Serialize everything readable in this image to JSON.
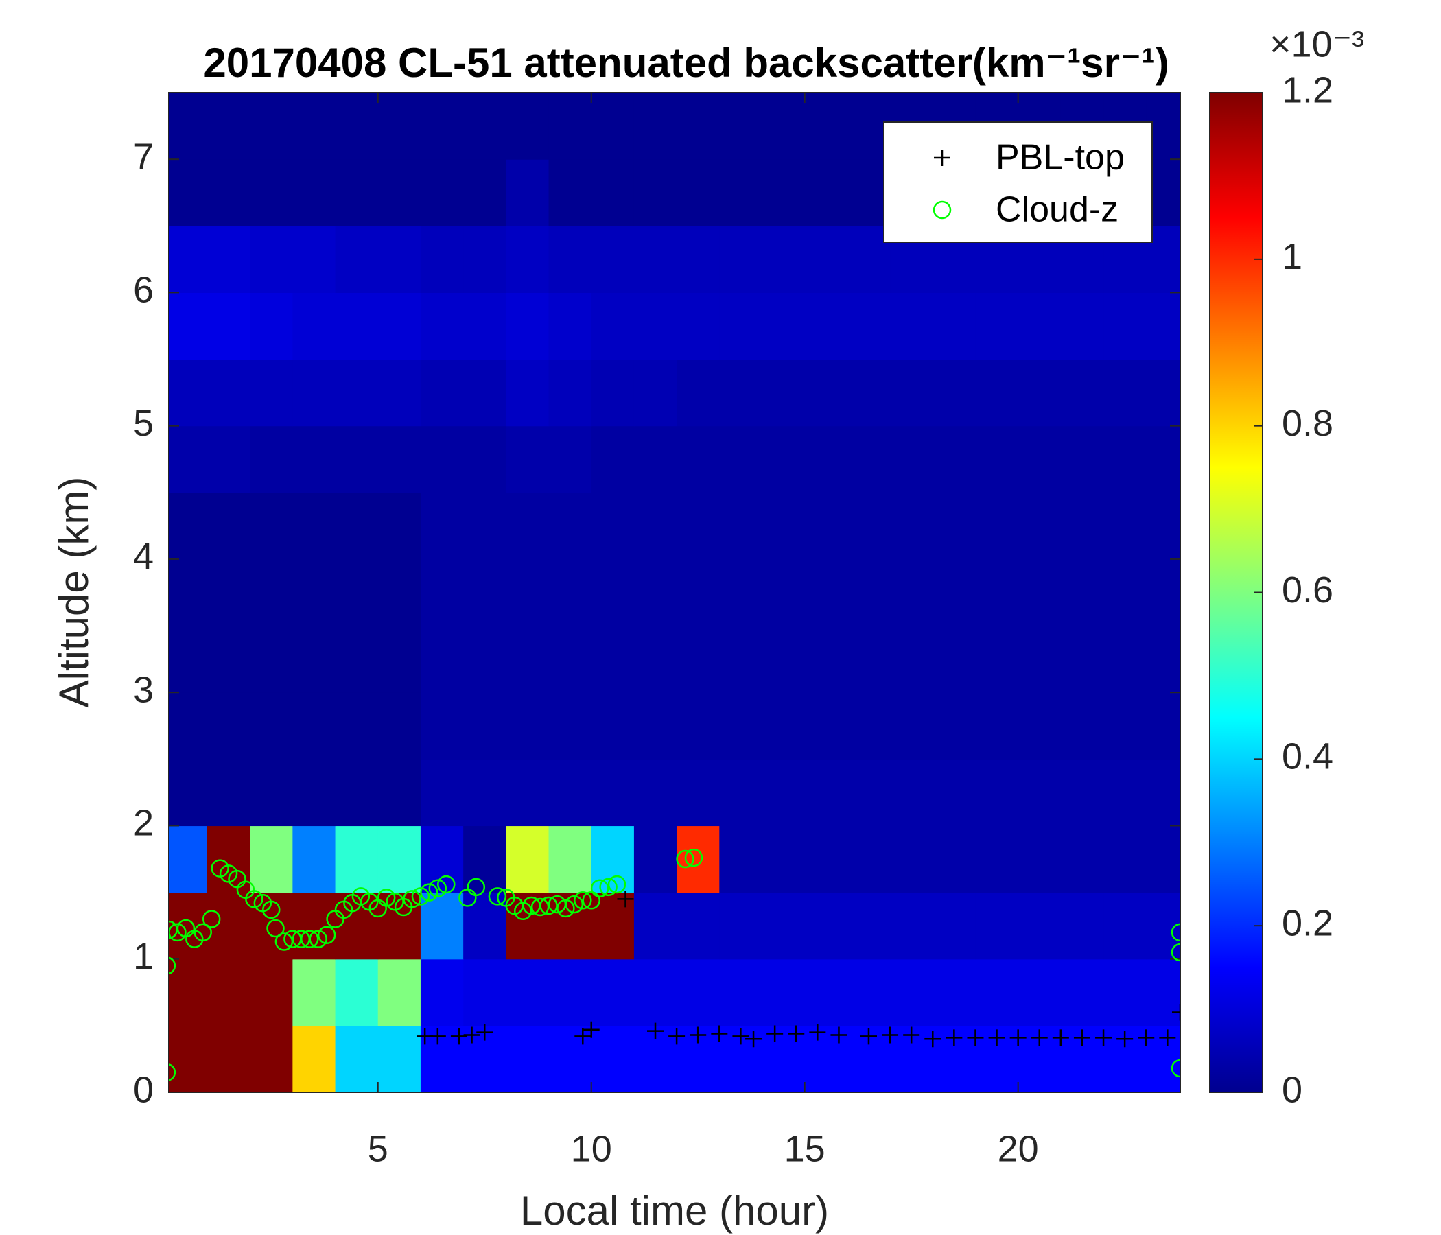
{
  "chart_data": {
    "type": "heatmap",
    "title": "20170408  CL-51 attenuated backscatter(km⁻¹sr⁻¹)",
    "x_label": "Local time (hour)",
    "y_label": "Altitude (km)",
    "colorbar_exponent": "×10⁻³",
    "colormap": "jet",
    "xlim": [
      0.1,
      23.8
    ],
    "ylim": [
      0,
      7.5
    ],
    "clim": [
      0,
      1.2
    ],
    "xticks": [
      5,
      10,
      15,
      20
    ],
    "yticks": [
      0,
      1,
      2,
      3,
      4,
      5,
      6,
      7
    ],
    "cticks": [
      0,
      0.2,
      0.4,
      0.6,
      0.8,
      1,
      1.2
    ],
    "x": [
      0.5,
      1.5,
      2.5,
      3.5,
      4.5,
      5.5,
      6.5,
      7.5,
      8.5,
      9.5,
      10.5,
      11.5,
      12.5,
      13.5,
      14.5,
      15.5,
      16.5,
      17.5,
      18.5,
      19.5,
      20.5,
      21.5,
      22.5,
      23.5
    ],
    "y": [
      0.25,
      0.75,
      1.25,
      1.75,
      2.25,
      2.75,
      3.25,
      3.75,
      4.25,
      4.75,
      5.25,
      5.75,
      6.25,
      6.75,
      7.25
    ],
    "z": [
      [
        1.2,
        1.2,
        1.2,
        0.8,
        0.4,
        0.4,
        0.15,
        0.15,
        0.15,
        0.15,
        0.15,
        0.15,
        0.15,
        0.15,
        0.15,
        0.15,
        0.15,
        0.15,
        0.15,
        0.15,
        0.15,
        0.15,
        0.15,
        0.15
      ],
      [
        1.2,
        1.2,
        1.2,
        0.6,
        0.5,
        0.6,
        0.13,
        0.12,
        0.12,
        0.12,
        0.12,
        0.12,
        0.12,
        0.12,
        0.12,
        0.12,
        0.12,
        0.12,
        0.12,
        0.12,
        0.12,
        0.12,
        0.12,
        0.12
      ],
      [
        1.2,
        1.2,
        1.2,
        1.2,
        1.2,
        1.2,
        0.3,
        0.08,
        1.2,
        1.2,
        1.2,
        0.08,
        0.08,
        0.08,
        0.08,
        0.08,
        0.08,
        0.08,
        0.08,
        0.08,
        0.08,
        0.08,
        0.08,
        0.08
      ],
      [
        0.25,
        1.2,
        0.6,
        0.3,
        0.5,
        0.5,
        0.1,
        0.03,
        0.7,
        0.6,
        0.4,
        0.05,
        1.0,
        0.05,
        0.05,
        0.05,
        0.05,
        0.05,
        0.05,
        0.05,
        0.05,
        0.05,
        0.05,
        0.05
      ],
      [
        0.02,
        0.02,
        0.02,
        0.02,
        0.02,
        0.02,
        0.05,
        0.05,
        0.05,
        0.05,
        0.05,
        0.05,
        0.05,
        0.05,
        0.05,
        0.05,
        0.05,
        0.05,
        0.05,
        0.05,
        0.05,
        0.05,
        0.05,
        0.05
      ],
      [
        0.02,
        0.02,
        0.02,
        0.02,
        0.02,
        0.02,
        0.04,
        0.04,
        0.04,
        0.04,
        0.04,
        0.04,
        0.04,
        0.04,
        0.04,
        0.04,
        0.04,
        0.04,
        0.04,
        0.04,
        0.04,
        0.04,
        0.04,
        0.04
      ],
      [
        0.02,
        0.02,
        0.02,
        0.02,
        0.02,
        0.02,
        0.04,
        0.04,
        0.04,
        0.04,
        0.04,
        0.04,
        0.04,
        0.04,
        0.04,
        0.04,
        0.04,
        0.04,
        0.04,
        0.04,
        0.04,
        0.04,
        0.04,
        0.04
      ],
      [
        0.02,
        0.02,
        0.02,
        0.02,
        0.02,
        0.02,
        0.04,
        0.04,
        0.04,
        0.04,
        0.04,
        0.04,
        0.04,
        0.04,
        0.04,
        0.04,
        0.04,
        0.04,
        0.04,
        0.04,
        0.04,
        0.04,
        0.04,
        0.04
      ],
      [
        0.02,
        0.02,
        0.02,
        0.02,
        0.02,
        0.02,
        0.04,
        0.04,
        0.04,
        0.04,
        0.04,
        0.04,
        0.04,
        0.04,
        0.04,
        0.04,
        0.04,
        0.04,
        0.04,
        0.04,
        0.04,
        0.04,
        0.04,
        0.04
      ],
      [
        0.05,
        0.05,
        0.04,
        0.04,
        0.04,
        0.04,
        0.04,
        0.04,
        0.05,
        0.05,
        0.04,
        0.04,
        0.04,
        0.04,
        0.04,
        0.04,
        0.04,
        0.04,
        0.04,
        0.04,
        0.04,
        0.04,
        0.04,
        0.04
      ],
      [
        0.07,
        0.07,
        0.07,
        0.07,
        0.07,
        0.07,
        0.06,
        0.06,
        0.08,
        0.07,
        0.06,
        0.06,
        0.05,
        0.05,
        0.05,
        0.05,
        0.05,
        0.05,
        0.05,
        0.05,
        0.05,
        0.05,
        0.05,
        0.05
      ],
      [
        0.12,
        0.12,
        0.11,
        0.1,
        0.1,
        0.1,
        0.09,
        0.09,
        0.1,
        0.09,
        0.08,
        0.08,
        0.08,
        0.08,
        0.08,
        0.08,
        0.08,
        0.08,
        0.08,
        0.08,
        0.08,
        0.08,
        0.08,
        0.08
      ],
      [
        0.1,
        0.1,
        0.09,
        0.09,
        0.08,
        0.08,
        0.07,
        0.07,
        0.08,
        0.07,
        0.07,
        0.07,
        0.07,
        0.07,
        0.07,
        0.07,
        0.07,
        0.07,
        0.07,
        0.07,
        0.07,
        0.07,
        0.07,
        0.07
      ],
      [
        0.02,
        0.02,
        0.02,
        0.02,
        0.02,
        0.02,
        0.02,
        0.02,
        0.05,
        0.02,
        0.02,
        0.02,
        0.02,
        0.02,
        0.02,
        0.02,
        0.02,
        0.02,
        0.02,
        0.02,
        0.02,
        0.02,
        0.02,
        0.02
      ],
      [
        0.02,
        0.02,
        0.02,
        0.02,
        0.02,
        0.02,
        0.02,
        0.02,
        0.02,
        0.02,
        0.02,
        0.02,
        0.02,
        0.02,
        0.02,
        0.02,
        0.02,
        0.02,
        0.02,
        0.02,
        0.02,
        0.02,
        0.02,
        0.02
      ]
    ],
    "series": [
      {
        "name": "PBL-top",
        "marker": "plus",
        "color": "#000000",
        "x": [
          6.1,
          6.4,
          6.9,
          7.2,
          7.5,
          9.8,
          10.0,
          10.8,
          11.5,
          12.0,
          12.5,
          13.0,
          13.5,
          13.8,
          14.3,
          14.8,
          15.3,
          15.8,
          16.5,
          17.0,
          17.5,
          18.0,
          18.5,
          19.0,
          19.5,
          20.0,
          20.5,
          21.0,
          21.5,
          22.0,
          22.5,
          23.0,
          23.5,
          23.8
        ],
        "y": [
          0.42,
          0.42,
          0.42,
          0.43,
          0.45,
          0.42,
          0.47,
          1.45,
          0.46,
          0.42,
          0.43,
          0.44,
          0.42,
          0.4,
          0.44,
          0.44,
          0.45,
          0.43,
          0.42,
          0.43,
          0.43,
          0.4,
          0.41,
          0.41,
          0.41,
          0.41,
          0.41,
          0.41,
          0.41,
          0.41,
          0.4,
          0.41,
          0.41,
          0.6
        ]
      },
      {
        "name": "Cloud-z",
        "marker": "circle",
        "color": "#00ff00",
        "x": [
          0.1,
          0.3,
          0.5,
          0.7,
          0.9,
          1.1,
          1.3,
          1.5,
          1.7,
          1.9,
          2.1,
          2.3,
          2.5,
          2.6,
          2.8,
          3.0,
          3.2,
          3.4,
          3.6,
          3.8,
          4.0,
          4.2,
          4.4,
          4.6,
          4.8,
          5.0,
          5.2,
          5.4,
          5.6,
          5.8,
          6.0,
          6.2,
          6.4,
          6.6,
          7.1,
          7.3,
          7.8,
          8.0,
          8.2,
          8.4,
          8.6,
          8.8,
          9.0,
          9.2,
          9.4,
          9.6,
          9.8,
          10.0,
          10.2,
          10.4,
          10.6,
          12.2,
          12.4,
          0.05,
          23.8,
          23.8,
          0.05,
          23.8
        ],
        "y": [
          1.22,
          1.2,
          1.23,
          1.15,
          1.2,
          1.3,
          1.68,
          1.64,
          1.6,
          1.52,
          1.45,
          1.42,
          1.37,
          1.23,
          1.13,
          1.15,
          1.15,
          1.15,
          1.15,
          1.18,
          1.3,
          1.37,
          1.42,
          1.47,
          1.43,
          1.38,
          1.46,
          1.43,
          1.39,
          1.45,
          1.47,
          1.5,
          1.53,
          1.56,
          1.46,
          1.54,
          1.47,
          1.46,
          1.4,
          1.36,
          1.4,
          1.39,
          1.4,
          1.41,
          1.38,
          1.41,
          1.44,
          1.44,
          1.53,
          1.54,
          1.56,
          1.75,
          1.76,
          0.95,
          1.2,
          1.05,
          0.15,
          0.18
        ]
      }
    ],
    "legend": "upper right"
  }
}
